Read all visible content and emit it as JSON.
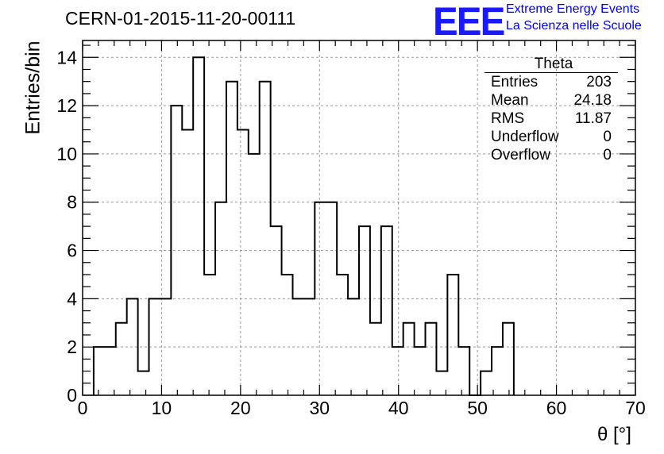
{
  "header": {
    "title": "CERN-01-2015-11-20-00111",
    "logo_text": "EEE",
    "logo_line1": "Extreme Energy Events",
    "logo_line2": "La Scienza nelle Scuole"
  },
  "stats_box": {
    "title": "Theta",
    "rows": [
      {
        "label": "Entries",
        "value": "203"
      },
      {
        "label": "Mean",
        "value": "24.18"
      },
      {
        "label": "RMS",
        "value": "11.87"
      },
      {
        "label": "Underflow",
        "value": "0"
      },
      {
        "label": "Overflow",
        "value": "0"
      }
    ]
  },
  "chart_data": {
    "type": "histogram",
    "title": "CERN-01-2015-11-20-00111",
    "xlabel": "θ [°]",
    "ylabel": "Entries/bin",
    "xlim": [
      0,
      70
    ],
    "ylim": [
      0,
      14.7
    ],
    "grid": true,
    "bin_width": 1.4,
    "x_ticks": [
      0,
      10,
      20,
      30,
      40,
      50,
      60,
      70
    ],
    "y_ticks": [
      0,
      2,
      4,
      6,
      8,
      10,
      12,
      14
    ],
    "bin_edges": [
      1.4,
      2.8,
      4.2,
      5.6,
      7.0,
      8.4,
      9.8,
      11.2,
      12.6,
      14.0,
      15.4,
      16.8,
      18.2,
      19.6,
      21.0,
      22.4,
      23.8,
      25.2,
      26.6,
      28.0,
      29.4,
      30.8,
      32.2,
      33.6,
      35.0,
      36.4,
      37.8,
      39.2,
      40.6,
      42.0,
      43.4,
      44.8,
      46.2,
      47.6,
      49.0,
      50.4,
      51.8,
      53.2,
      54.6
    ],
    "counts": [
      2,
      2,
      3,
      4,
      1,
      4,
      4,
      12,
      11,
      14,
      5,
      8,
      13,
      11,
      10,
      13,
      7,
      5,
      4,
      4,
      8,
      8,
      5,
      4,
      7,
      3,
      7,
      2,
      3,
      2,
      3,
      1,
      5,
      2,
      0,
      1,
      2,
      3
    ],
    "line_color": "#000000",
    "grid_color": "#9a9a9a"
  }
}
